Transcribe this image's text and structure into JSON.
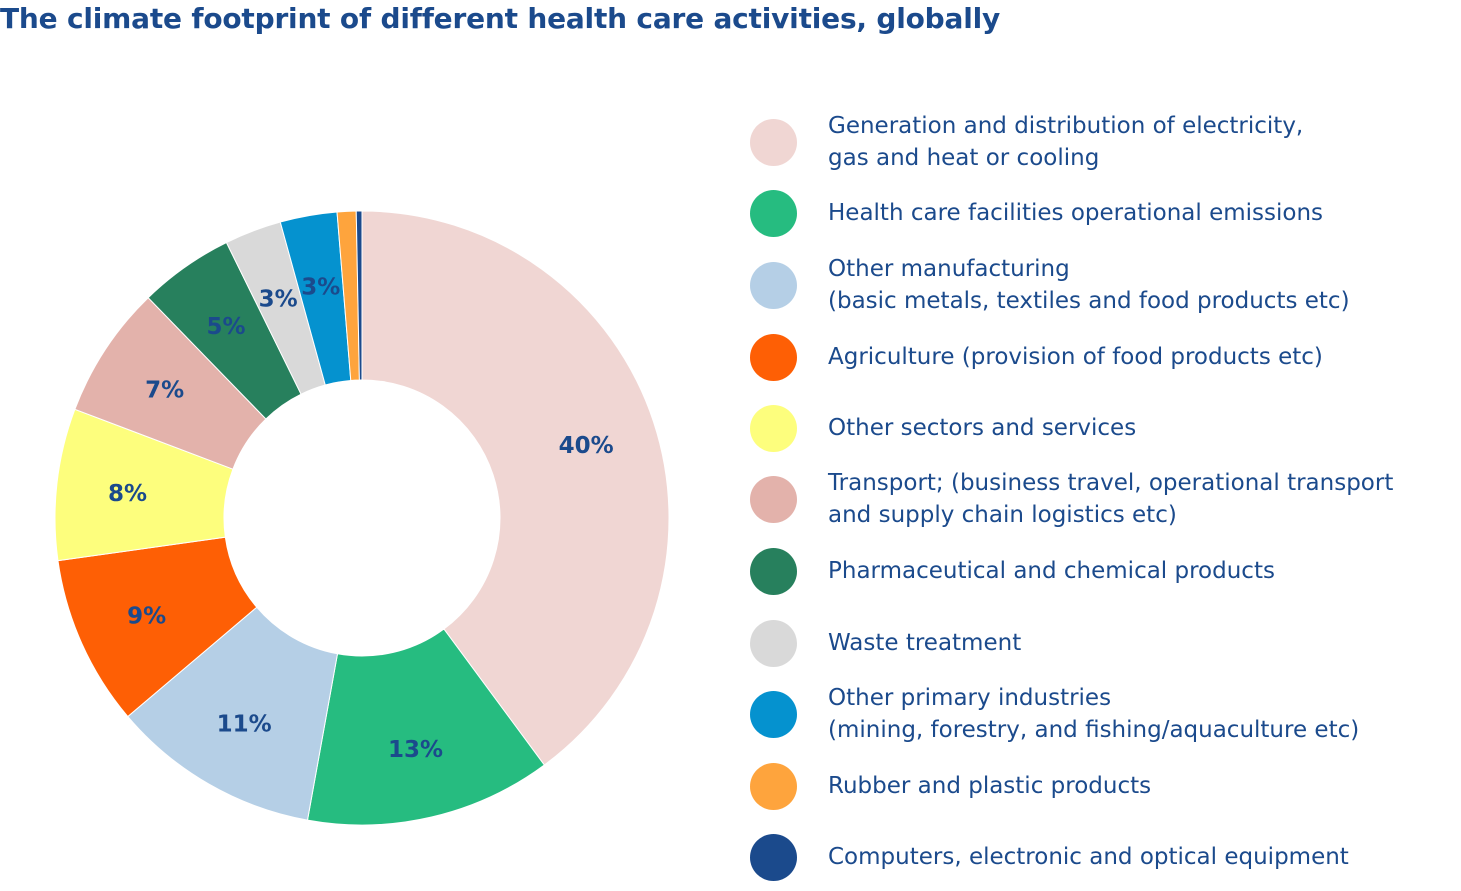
{
  "title": "The climate footprint of different health care activities, globally",
  "chart_data": {
    "type": "pie",
    "donut": true,
    "title": "The climate footprint of different health care activities, globally",
    "label_color": "#1b4a8c",
    "slices": [
      {
        "label": "Generation and distribution of electricity, gas and heat or cooling",
        "legend_lines": "Generation and distribution of electricity,\ngas and heat or cooling",
        "value": 40,
        "display": "40%",
        "color": "#f0d6d3"
      },
      {
        "label": "Health care facilities operational emissions",
        "legend_lines": "Health care facilities operational emissions",
        "value": 13,
        "display": "13%",
        "color": "#26bc80"
      },
      {
        "label": "Other manufacturing (basic metals, textiles and food products etc)",
        "legend_lines": "Other manufacturing\n(basic metals, textiles and food products etc)",
        "value": 11,
        "display": "11%",
        "color": "#b5cfe6"
      },
      {
        "label": "Agriculture (provision of food products etc)",
        "legend_lines": "Agriculture (provision of food products etc)",
        "value": 9,
        "display": "9%",
        "color": "#fe5f05"
      },
      {
        "label": "Other sectors and services",
        "legend_lines": "Other sectors and services",
        "value": 8,
        "display": "8%",
        "color": "#fdfe7d"
      },
      {
        "label": "Transport; (business travel, operational transport and supply chain logistics etc)",
        "legend_lines": "Transport; (business travel, operational transport\nand supply chain logistics etc)",
        "value": 7,
        "display": "7%",
        "color": "#e3b2ab"
      },
      {
        "label": "Pharmaceutical and chemical products",
        "legend_lines": "Pharmaceutical and chemical products",
        "value": 5,
        "display": "5%",
        "color": "#27805d"
      },
      {
        "label": "Waste treatment",
        "legend_lines": "Waste treatment",
        "value": 3,
        "display": "3%",
        "color": "#d9d9d9"
      },
      {
        "label": "Other primary industries (mining, forestry, and fishing/aquaculture etc)",
        "legend_lines": "Other primary industries\n(mining, forestry, and fishing/aquaculture etc)",
        "value": 3,
        "display": "3%",
        "color": "#0592cf"
      },
      {
        "label": "Rubber and plastic products",
        "legend_lines": "Rubber and plastic products",
        "value": 1,
        "display": "",
        "color": "#fea43d"
      },
      {
        "label": "Computers, electronic and optical equipment",
        "legend_lines": "Computers, electronic and optical equipment",
        "value": 0.3,
        "display": "",
        "color": "#1b4a8c"
      }
    ]
  }
}
